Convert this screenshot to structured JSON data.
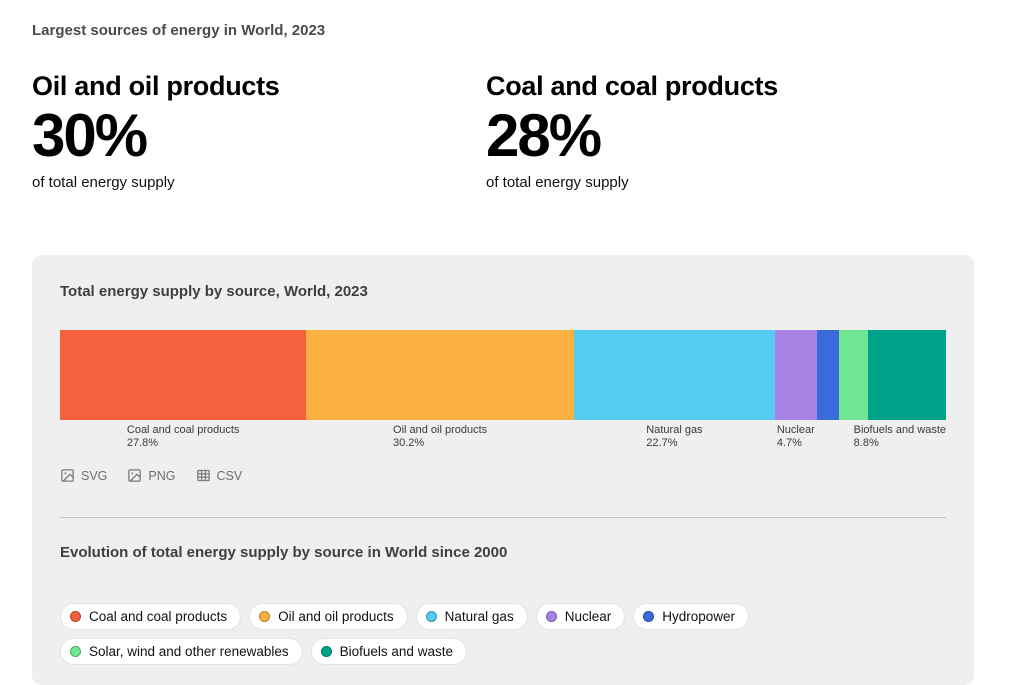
{
  "page": {
    "heading": "Largest sources of energy in World, 2023"
  },
  "stats": [
    {
      "title": "Oil and oil products",
      "value": "30%",
      "caption": "of total energy supply"
    },
    {
      "title": "Coal and coal products",
      "value": "28%",
      "caption": "of total energy supply"
    }
  ],
  "card": {
    "chart_title": "Total energy supply by source, World, 2023",
    "export": [
      {
        "label": "SVG",
        "icon": "image-icon"
      },
      {
        "label": "PNG",
        "icon": "image-icon"
      },
      {
        "label": "CSV",
        "icon": "table-icon"
      }
    ],
    "evolution_title": "Evolution of total energy supply by source in World since 2000",
    "legend": [
      {
        "label": "Coal and coal products",
        "color": "#f4613c"
      },
      {
        "label": "Oil and oil products",
        "color": "#fbb042"
      },
      {
        "label": "Natural gas",
        "color": "#55cbf2"
      },
      {
        "label": "Nuclear",
        "color": "#a783e6"
      },
      {
        "label": "Hydropower",
        "color": "#3a6bd9"
      },
      {
        "label": "Solar, wind and other renewables",
        "color": "#71e692"
      },
      {
        "label": "Biofuels and waste",
        "color": "#00a38a"
      }
    ]
  },
  "chart_data": {
    "type": "bar",
    "variant": "horizontal-stacked",
    "title": "Total energy supply by source, World, 2023",
    "unit": "% of total energy supply",
    "grid": false,
    "segments": [
      {
        "name": "Coal and coal products",
        "value": 27.8,
        "color": "#f4613c",
        "show_label": true
      },
      {
        "name": "Oil and oil products",
        "value": 30.2,
        "color": "#fbb042",
        "show_label": true
      },
      {
        "name": "Natural gas",
        "value": 22.7,
        "color": "#55cbf2",
        "show_label": true
      },
      {
        "name": "Nuclear",
        "value": 4.7,
        "color": "#a783e6",
        "show_label": true
      },
      {
        "name": "Hydropower",
        "value": 2.5,
        "color": "#3a6bd9",
        "show_label": false
      },
      {
        "name": "Solar, wind and other renewables",
        "value": 3.3,
        "color": "#71e692",
        "show_label": false
      },
      {
        "name": "Biofuels and waste",
        "value": 8.8,
        "color": "#00a38a",
        "show_label": true
      }
    ]
  }
}
